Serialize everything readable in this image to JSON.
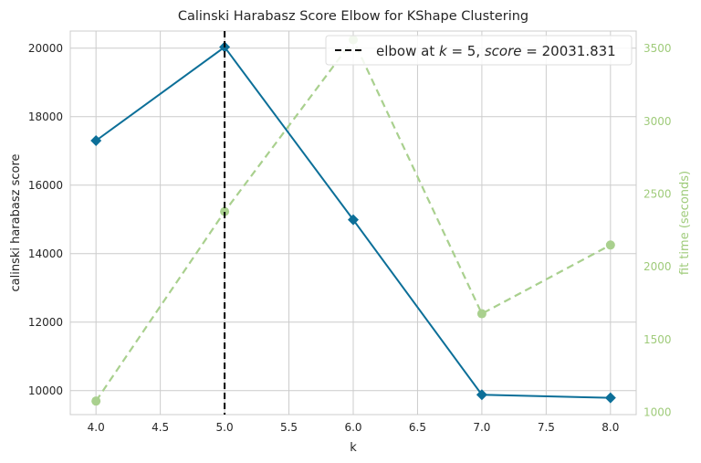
{
  "chart_data": {
    "type": "line",
    "title": "Calinski Harabasz Score Elbow for KShape Clustering",
    "xlabel": "k",
    "ylabel": "calinski harabasz score",
    "y2label": "fit time (seconds)",
    "xlim": [
      3.8,
      8.2
    ],
    "ylim": [
      9300,
      20500
    ],
    "y2lim": [
      985,
      3620
    ],
    "xticks": [
      4.0,
      4.5,
      5.0,
      5.5,
      6.0,
      6.5,
      7.0,
      7.5,
      8.0
    ],
    "xtick_labels": [
      "4.0",
      "4.5",
      "5.0",
      "5.5",
      "6.0",
      "6.5",
      "7.0",
      "7.5",
      "8.0"
    ],
    "yticks": [
      10000,
      12000,
      14000,
      16000,
      18000,
      20000
    ],
    "ytick_labels": [
      "10000",
      "12000",
      "14000",
      "16000",
      "18000",
      "20000"
    ],
    "y2ticks": [
      1000,
      1500,
      2000,
      2500,
      3000,
      3500
    ],
    "y2tick_labels": [
      "1000",
      "1500",
      "2000",
      "2500",
      "3000",
      "3500"
    ],
    "grid": true,
    "legend_position": "top-right",
    "series": [
      {
        "name": "",
        "axis": "left",
        "x": [
          4,
          5,
          6,
          7,
          8
        ],
        "y": [
          17300,
          20032,
          14990,
          9880,
          9790
        ],
        "color": "#0c6f98",
        "marker": "diamond",
        "style": "solid"
      },
      {
        "name": "",
        "axis": "right",
        "x": [
          4,
          5,
          6,
          7,
          8
        ],
        "y": [
          1078,
          2380,
          3560,
          1678,
          2150
        ],
        "color": "#a9d08e",
        "marker": "circle",
        "style": "dashed"
      }
    ],
    "elbow": {
      "x": 5,
      "legend_prefix": "elbow at ",
      "legend_k": "k",
      "legend_mid": " = 5, ",
      "legend_score": "score",
      "legend_suffix": " = 20031.831",
      "color": "#000000"
    }
  }
}
